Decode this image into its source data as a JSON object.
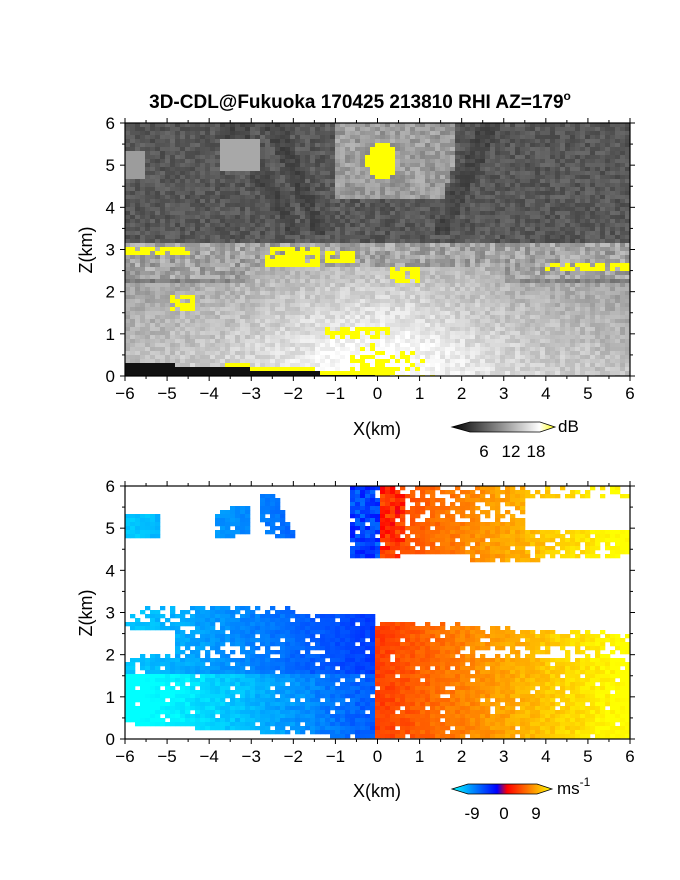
{
  "title": "3D-CDL@Fukuoka 170425 213810 RHI AZ=179",
  "title_suffix": "o",
  "chart_data": [
    {
      "type": "heatmap",
      "panel": "reflectivity",
      "xlabel": "X(km)",
      "ylabel": "Z(km)",
      "xlim": [
        -6,
        6
      ],
      "ylim": [
        0,
        6
      ],
      "xticks": [
        -6,
        -5,
        -4,
        -3,
        -2,
        -1,
        0,
        1,
        2,
        3,
        4,
        5,
        6
      ],
      "yticks": [
        0,
        1,
        2,
        3,
        4,
        5,
        6
      ],
      "colorbar": {
        "unit": "dB",
        "ticks": [
          6,
          12,
          18
        ],
        "range": [
          0,
          20
        ],
        "colors": [
          "#000000",
          "#ffffff",
          "#ffff00"
        ]
      },
      "features": {
        "background_dB": 4,
        "bright_layer_top_km": 2.6,
        "cloud_layer_km": [
          2.3,
          3.2
        ],
        "strong_echo_spot": {
          "x": 0.1,
          "z": 5.1,
          "dB": 20
        },
        "saturated_patches": [
          {
            "x": [
              -6.0,
              -4.4
            ],
            "z": [
              2.85,
              3.1
            ]
          },
          {
            "x": [
              -2.7,
              -1.4
            ],
            "z": [
              2.6,
              3.1
            ]
          },
          {
            "x": [
              -1.2,
              -0.5
            ],
            "z": [
              2.7,
              3.0
            ]
          },
          {
            "x": [
              0.3,
              1.0
            ],
            "z": [
              2.2,
              2.6
            ]
          },
          {
            "x": [
              4.0,
              6.0
            ],
            "z": [
              2.5,
              2.7
            ]
          },
          {
            "x": [
              -1.2,
              0.3
            ],
            "z": [
              0.9,
              1.2
            ]
          },
          {
            "x": [
              -4.9,
              -4.3
            ],
            "z": [
              1.5,
              1.9
            ]
          }
        ]
      }
    },
    {
      "type": "heatmap",
      "panel": "doppler_velocity",
      "xlabel": "X(km)",
      "ylabel": "Z(km)",
      "xlim": [
        -6,
        6
      ],
      "ylim": [
        0,
        6
      ],
      "xticks": [
        -6,
        -5,
        -4,
        -3,
        -2,
        -1,
        0,
        1,
        2,
        3,
        4,
        5,
        6
      ],
      "yticks": [
        0,
        1,
        2,
        3,
        4,
        5,
        6
      ],
      "colorbar": {
        "unit": "ms",
        "unit_sup": "-1",
        "ticks": [
          -9,
          0,
          9
        ],
        "range": [
          -12,
          12
        ],
        "colors": [
          "#00ffff",
          "#0000ff",
          "#ff0000",
          "#ffff00"
        ]
      },
      "features": {
        "velocity_left_ms": -9,
        "velocity_right_ms": 9,
        "low_layer_top_km": 3.0,
        "upper_layer_km": [
          4.2,
          6.0
        ]
      }
    }
  ]
}
